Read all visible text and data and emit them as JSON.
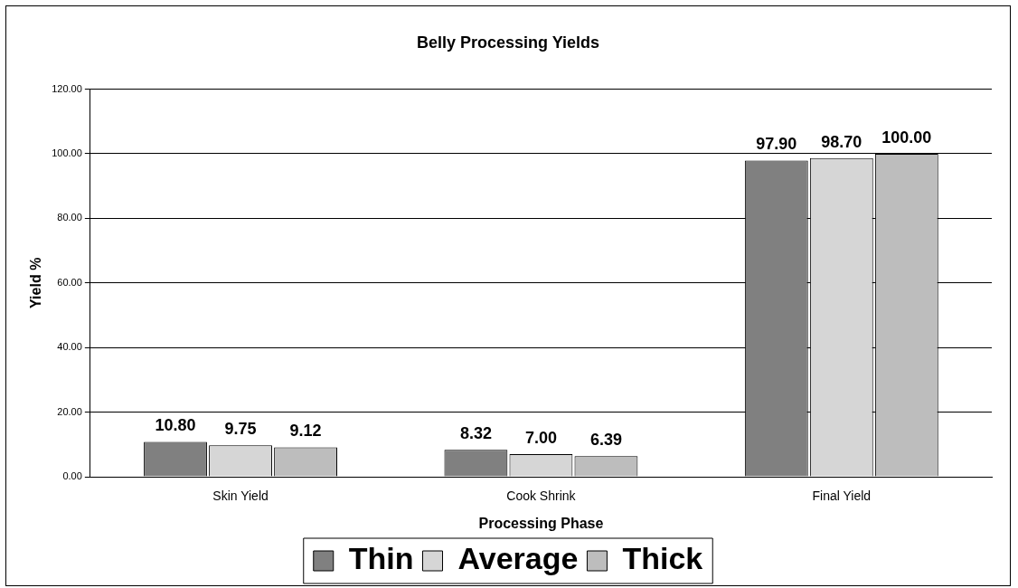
{
  "chart_data": {
    "type": "bar",
    "title": "Belly Processing Yields",
    "xlabel": "Processing Phase",
    "ylabel": "Yield %",
    "categories": [
      "Skin Yield",
      "Cook Shrink",
      "Final Yield"
    ],
    "series": [
      {
        "name": "Thin",
        "color": "#808080",
        "values": [
          10.8,
          8.32,
          97.9
        ]
      },
      {
        "name": "Average",
        "color": "#d6d6d6",
        "values": [
          9.75,
          7.0,
          98.7
        ]
      },
      {
        "name": "Thick",
        "color": "#bdbdbd",
        "values": [
          9.12,
          6.39,
          100.0
        ]
      }
    ],
    "ylim": [
      0,
      120
    ],
    "yticks": [
      {
        "value": 0,
        "label": "0.00"
      },
      {
        "value": 20,
        "label": "20.00"
      },
      {
        "value": 40,
        "label": "40.00"
      },
      {
        "value": 60,
        "label": "60.00"
      },
      {
        "value": 80,
        "label": "80.00"
      },
      {
        "value": 100,
        "label": "100.00"
      },
      {
        "value": 120,
        "label": "120.00"
      }
    ],
    "grid": "y",
    "legend": "bottom",
    "value_labels": [
      [
        "10.80",
        "8.32",
        "97.90"
      ],
      [
        "9.75",
        "7.00",
        "98.70"
      ],
      [
        "9.12",
        "6.39",
        "100.00"
      ]
    ]
  }
}
